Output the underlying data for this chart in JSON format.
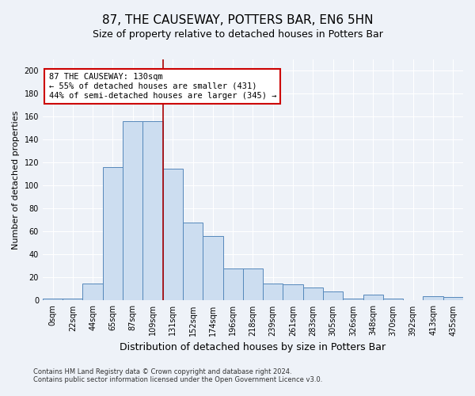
{
  "title": "87, THE CAUSEWAY, POTTERS BAR, EN6 5HN",
  "subtitle": "Size of property relative to detached houses in Potters Bar",
  "xlabel": "Distribution of detached houses by size in Potters Bar",
  "ylabel": "Number of detached properties",
  "bin_labels": [
    "0sqm",
    "22sqm",
    "44sqm",
    "65sqm",
    "87sqm",
    "109sqm",
    "131sqm",
    "152sqm",
    "174sqm",
    "196sqm",
    "218sqm",
    "239sqm",
    "261sqm",
    "283sqm",
    "305sqm",
    "326sqm",
    "348sqm",
    "370sqm",
    "392sqm",
    "413sqm",
    "435sqm"
  ],
  "bar_values": [
    2,
    2,
    15,
    116,
    156,
    156,
    115,
    68,
    56,
    28,
    28,
    15,
    14,
    11,
    8,
    2,
    5,
    2,
    0,
    4,
    3
  ],
  "bar_color": "#ccddf0",
  "bar_edge_color": "#5588bb",
  "ylim": [
    0,
    210
  ],
  "yticks": [
    0,
    20,
    40,
    60,
    80,
    100,
    120,
    140,
    160,
    180,
    200
  ],
  "vline_x": 6,
  "vline_color": "#aa0000",
  "annotation_text": "87 THE CAUSEWAY: 130sqm\n← 55% of detached houses are smaller (431)\n44% of semi-detached houses are larger (345) →",
  "annotation_box_color": "#ffffff",
  "annotation_box_edge": "#cc0000",
  "footnote1": "Contains HM Land Registry data © Crown copyright and database right 2024.",
  "footnote2": "Contains public sector information licensed under the Open Government Licence v3.0.",
  "background_color": "#eef2f8",
  "grid_color": "#ffffff",
  "title_fontsize": 11,
  "subtitle_fontsize": 9,
  "ylabel_fontsize": 8,
  "xlabel_fontsize": 9,
  "tick_fontsize": 7,
  "annot_fontsize": 7.5
}
